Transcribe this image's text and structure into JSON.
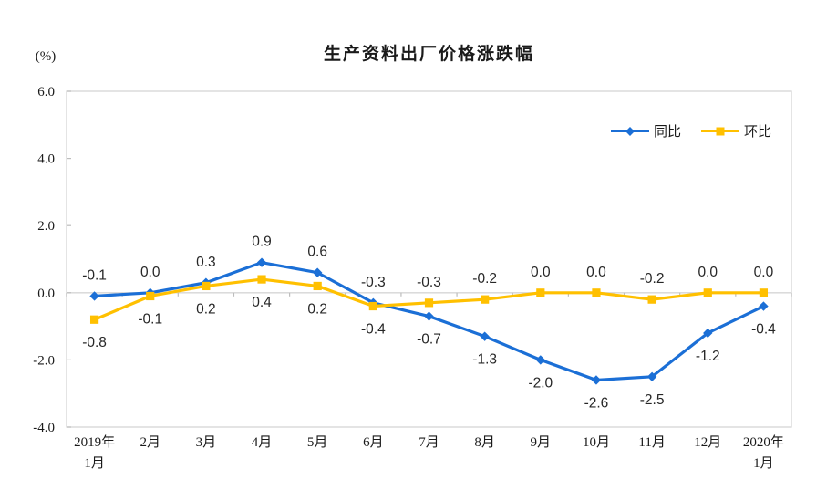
{
  "chart": {
    "title": "生产资料出厂价格涨跌幅",
    "unit_label": "(%)"
  },
  "chart_data": {
    "type": "line",
    "title": "生产资料出厂价格涨跌幅",
    "unit": "(%)",
    "categories": [
      "2019年\n1月",
      "2月",
      "3月",
      "4月",
      "5月",
      "6月",
      "7月",
      "8月",
      "9月",
      "10月",
      "11月",
      "12月",
      "2020年\n1月"
    ],
    "series": [
      {
        "name": "同比",
        "color": "#1B6FD6",
        "marker": "diamond",
        "values": [
          -0.1,
          0.0,
          0.3,
          0.9,
          0.6,
          -0.3,
          -0.7,
          -1.3,
          -2.0,
          -2.6,
          -2.5,
          -1.2,
          -0.4
        ],
        "label_positions": [
          "above",
          "above",
          "above",
          "above",
          "above",
          "above",
          "below",
          "below",
          "below",
          "below",
          "below",
          "below",
          "below"
        ]
      },
      {
        "name": "环比",
        "color": "#FFC000",
        "marker": "square",
        "values": [
          -0.8,
          -0.1,
          0.2,
          0.4,
          0.2,
          -0.4,
          -0.3,
          -0.2,
          0.0,
          0.0,
          -0.2,
          0.0,
          0.0
        ],
        "label_positions": [
          "below",
          "below",
          "below",
          "below",
          "below",
          "below",
          "above",
          "above",
          "above",
          "above",
          "above",
          "above",
          "above"
        ]
      }
    ],
    "ylim": [
      -4.0,
      6.0
    ],
    "yticks": [
      6.0,
      4.0,
      2.0,
      0.0,
      -2.0,
      -4.0
    ],
    "grid": "zero-line-only",
    "legend_position": "top-right-inside",
    "border_color": "#d6d6d6",
    "tick_color": "#bdbdbd"
  }
}
